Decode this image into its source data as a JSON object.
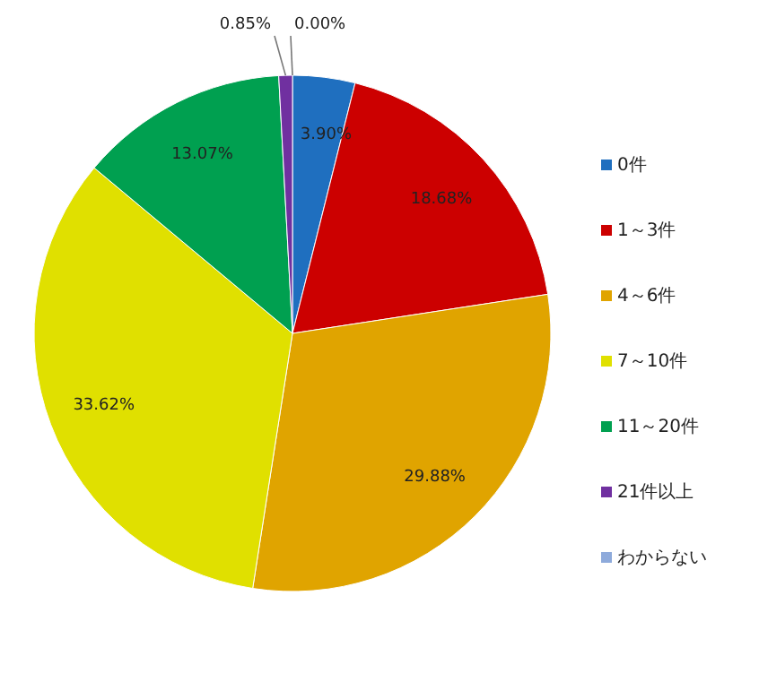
{
  "chart_data": {
    "type": "pie",
    "categories": [
      "0件",
      "1～3件",
      "4～6件",
      "7～10件",
      "11～20件",
      "21件以上",
      "わからない"
    ],
    "values": [
      3.9,
      18.68,
      29.88,
      33.62,
      13.07,
      0.85,
      0.0
    ],
    "value_labels": [
      "3.90%",
      "18.68%",
      "29.88%",
      "33.62%",
      "13.07%",
      "0.85%",
      "0.00%"
    ],
    "colors": [
      "#1f6fbf",
      "#cc0000",
      "#e0a400",
      "#e0e000",
      "#00a050",
      "#7030a0",
      "#8eaadb"
    ],
    "legend": "right"
  }
}
